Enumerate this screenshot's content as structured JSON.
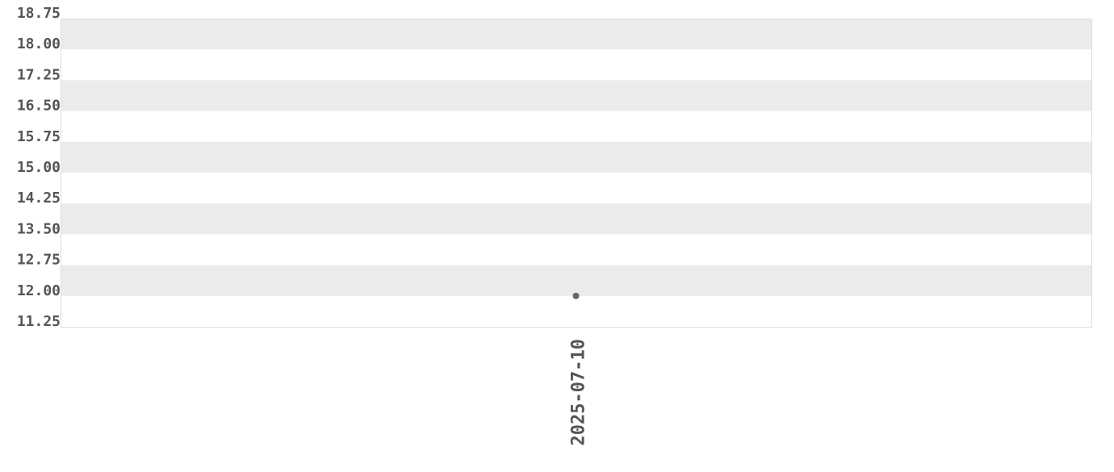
{
  "chart_data": {
    "type": "scatter",
    "title": "",
    "xlabel": "",
    "ylabel": "",
    "x_categories": [
      "2025-07-10"
    ],
    "series": [
      {
        "x": [
          "2025-07-10"
        ],
        "y": [
          12.0
        ]
      }
    ],
    "ylim": [
      11.25,
      18.75
    ],
    "y_ticks": [
      "18.75",
      "18.00",
      "17.25",
      "16.50",
      "15.75",
      "15.00",
      "14.25",
      "13.50",
      "12.75",
      "12.00",
      "11.25"
    ],
    "grid": "alternating horizontal bands",
    "legend": "none",
    "colors": {
      "point": "#666666",
      "band": "#ebebeb",
      "border": "#dddddd",
      "text": "#555555"
    }
  }
}
